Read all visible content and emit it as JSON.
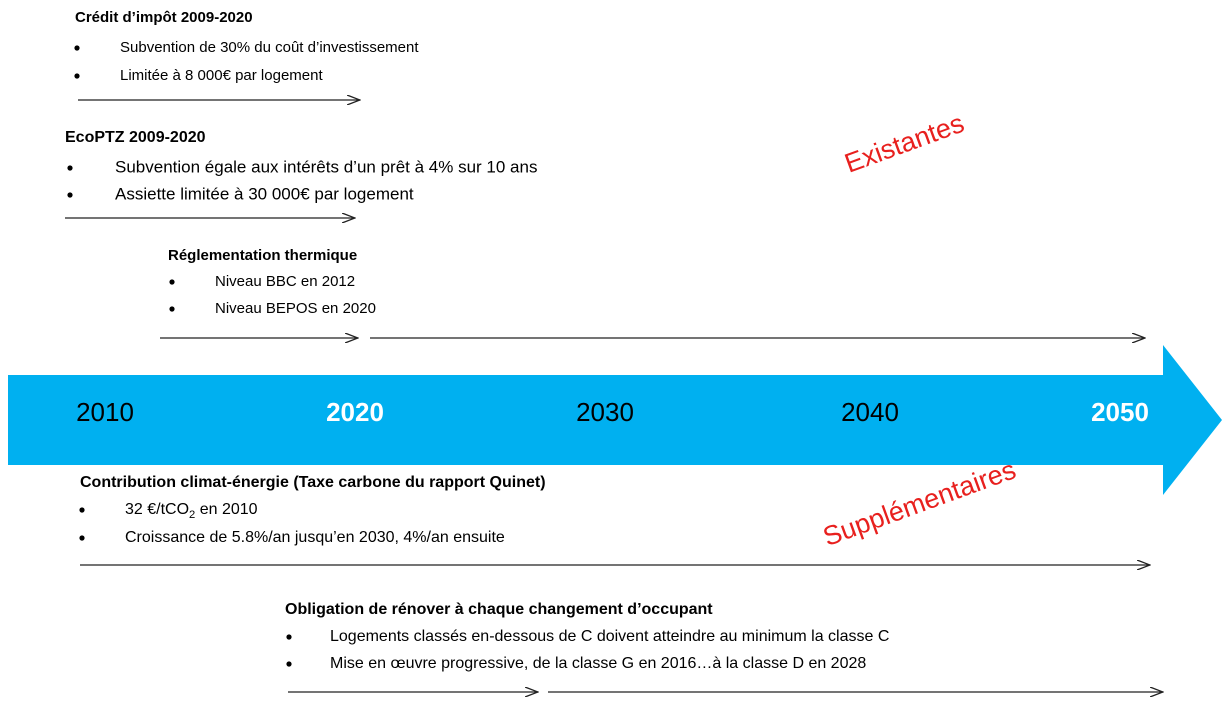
{
  "blocks": [
    {
      "title": "Crédit d’impôt  2009-2020",
      "bullets": [
        "Subvention de 30% du coût d’investissement",
        "Limitée à 8 000€ par logement"
      ]
    },
    {
      "title": "EcoPTZ 2009-2020",
      "bullets": [
        "Subvention égale aux intérêts d’un prêt à 4% sur 10 ans",
        "Assiette limitée à 30 000€ par logement"
      ]
    },
    {
      "title": "Réglementation thermique",
      "bullets": [
        "Niveau BBC en 2012",
        "Niveau BEPOS en 2020"
      ]
    },
    {
      "title": "Contribution climat-énergie (Taxe carbone du rapport Quinet)",
      "bullets": [
        {
          "parts": [
            "32 €/tCO",
            "2",
            " en 2010"
          ]
        },
        "Croissance de 5.8%/an jusqu’en 2030, 4%/an ensuite"
      ]
    },
    {
      "title": "Obligation de rénover à chaque changement d’occupant",
      "bullets": [
        "Logements classés en-dessous de C doivent atteindre au minimum la classe C",
        "Mise en œuvre progressive, de la classe G en 2016…à la classe D en 2028"
      ]
    }
  ],
  "timeline": [
    "2010",
    "2020",
    "2030",
    "2040",
    "2050"
  ],
  "labels": {
    "existing": "Existantes",
    "additional": "Supplémentaires"
  }
}
